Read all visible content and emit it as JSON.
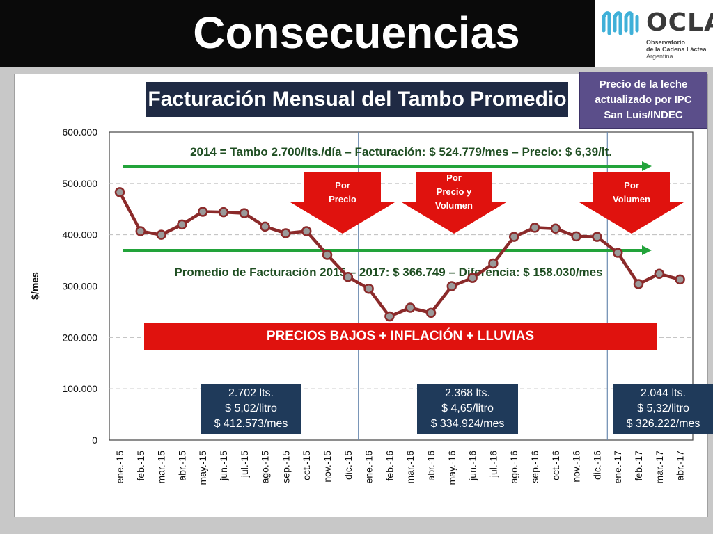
{
  "header": {
    "title": "Consecuencias"
  },
  "logo": {
    "name": "OCLA",
    "sub1": "Observatorio",
    "sub2": "de la Cadena Láctea",
    "sub3": "Argentina"
  },
  "subtitle": "Facturación Mensual del Tambo Promedio",
  "note": {
    "line1": "Precio de la leche",
    "line2": "actualizado por IPC",
    "line3": "San Luis/INDEC"
  },
  "annotations": {
    "top_line": "2014 = Tambo 2.700/lts./día – Facturación: $ 524.779/mes – Precio: $ 6,39/lt.",
    "mid_line": "Promedio de Facturación 2015 – 2017: $ 366.749 – Diferencia: $ 158.030/mes",
    "banner": "PRECIOS BAJOS + INFLACIÓN + LLUVIAS"
  },
  "arrows": [
    {
      "lines": [
        "Por",
        "Precio"
      ]
    },
    {
      "lines": [
        "Por",
        "Precio y",
        "Volumen"
      ]
    },
    {
      "lines": [
        "Por",
        "Volumen"
      ]
    }
  ],
  "info_boxes": [
    {
      "l1": "2.702 lts.",
      "l2": "$ 5,02/litro",
      "l3": "$ 412.573/mes"
    },
    {
      "l1": "2.368 lts.",
      "l2": "$ 4,65/litro",
      "l3": "$ 334.924/mes"
    },
    {
      "l1": "2.044 lts.",
      "l2": "$ 5,32/litro",
      "l3": "$ 326.222/mes"
    }
  ],
  "colors": {
    "series": "#8b2a2a",
    "marker": "#9a9a9a",
    "green": "#22a33a",
    "banner": "#e0120e",
    "box": "#1f3a5a"
  },
  "chart_data": {
    "type": "line",
    "ylabel": "$/mes",
    "ylim": [
      0,
      600000
    ],
    "yticks": [
      0,
      100000,
      200000,
      300000,
      400000,
      500000,
      600000
    ],
    "ytick_labels": [
      "0",
      "100.000",
      "200.000",
      "300.000",
      "400.000",
      "500.000",
      "600.000"
    ],
    "categories": [
      "ene.-15",
      "feb.-15",
      "mar.-15",
      "abr.-15",
      "may.-15",
      "jun.-15",
      "jul.-15",
      "ago.-15",
      "sep.-15",
      "oct.-15",
      "nov.-15",
      "dic.-15",
      "ene.-16",
      "feb.-16",
      "mar.-16",
      "abr.-16",
      "may.-16",
      "jun.-16",
      "jul.-16",
      "ago.-16",
      "sep.-16",
      "oct.-16",
      "nov.-16",
      "dic.-16",
      "ene.-17",
      "feb.-17",
      "mar.-17",
      "abr.-17"
    ],
    "series": [
      {
        "values": [
          483000,
          407000,
          400000,
          420000,
          445000,
          444000,
          442000,
          416000,
          403000,
          407000,
          361000,
          318000,
          295000,
          241000,
          258000,
          248000,
          300000,
          316000,
          344000,
          396000,
          414000,
          412000,
          397000,
          396000,
          365000,
          304000,
          324000,
          313000
        ]
      }
    ],
    "grid": "horizontal-dashed"
  }
}
